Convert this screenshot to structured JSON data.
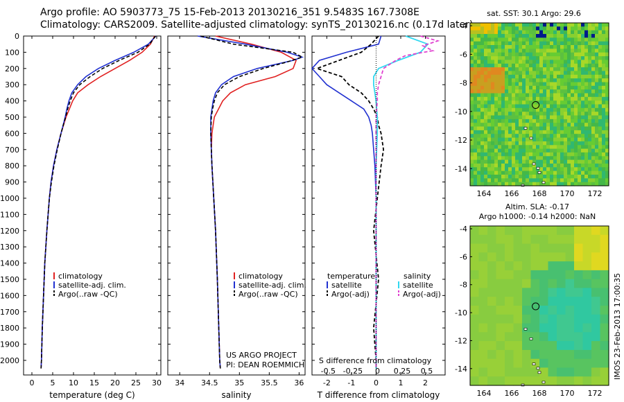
{
  "header": {
    "line1": "Argo profile: AO 5903773_75 15-Feb-2013 20130216_351 9.5483S 167.7308E",
    "line2": "Climatology: CARS2009. Satellite-adjusted climatology: synTS_20130216.nc (0.17d later)"
  },
  "colors": {
    "climatology": "#e02020",
    "satellite": "#2030d0",
    "argo": "#000000",
    "sat_sal": "#30d8f0",
    "argo_sal": "#e040d0"
  },
  "chart_data": [
    {
      "type": "line",
      "id": "temperature",
      "xlabel": "temperature (deg C)",
      "ylabel": "",
      "xlim": [
        -2,
        31
      ],
      "ylim": [
        2090,
        0
      ],
      "y_reversed": true,
      "xticks": [
        0,
        5,
        10,
        15,
        20,
        25,
        30
      ],
      "yticks": [
        0,
        100,
        200,
        300,
        400,
        500,
        600,
        700,
        800,
        900,
        1000,
        1100,
        1200,
        1300,
        1400,
        1500,
        1600,
        1700,
        1800,
        1900,
        2000
      ],
      "legend": [
        "climatology",
        "satellite-adj. clim.",
        "Argo(..raw -QC)"
      ],
      "series": [
        {
          "name": "climatology",
          "depth": [
            0,
            50,
            100,
            150,
            200,
            250,
            300,
            350,
            400,
            450,
            500,
            600,
            700,
            800,
            900,
            1000,
            1200,
            1400,
            1600,
            1800,
            2000,
            2050
          ],
          "values": [
            29.5,
            28.5,
            26.5,
            23.5,
            20,
            16.5,
            13.5,
            11,
            9.8,
            9,
            8.2,
            7,
            6,
            5.2,
            4.6,
            4.2,
            3.6,
            3.1,
            2.8,
            2.5,
            2.3,
            2.2
          ]
        },
        {
          "name": "satellite",
          "depth": [
            0,
            50,
            100,
            150,
            200,
            250,
            300,
            350,
            400,
            450,
            500,
            600,
            700,
            800,
            900,
            1000,
            1200,
            1400,
            1600,
            1800,
            2000,
            2050
          ],
          "values": [
            29.8,
            28,
            24.5,
            20,
            16,
            13,
            11,
            9.6,
            8.9,
            8.4,
            8,
            7,
            6,
            5.2,
            4.6,
            4.2,
            3.6,
            3.1,
            2.8,
            2.5,
            2.3,
            2.2
          ]
        },
        {
          "name": "argo",
          "depth": [
            0,
            50,
            100,
            150,
            200,
            250,
            300,
            350,
            400,
            450,
            500,
            600,
            700,
            800,
            900,
            1000,
            1200,
            1400,
            1600,
            1800,
            2000,
            2050
          ],
          "values": [
            29.7,
            28.3,
            25.5,
            21,
            17,
            14,
            11.5,
            10,
            9.2,
            8.6,
            8.1,
            7,
            6.1,
            5.3,
            4.7,
            4.2,
            3.6,
            3.1,
            2.8,
            2.5,
            2.3,
            2.2
          ]
        }
      ]
    },
    {
      "type": "line",
      "id": "salinity",
      "xlabel": "salinity",
      "ylabel": "",
      "xlim": [
        33.8,
        36.1
      ],
      "ylim": [
        2090,
        0
      ],
      "y_reversed": true,
      "xticks": [
        34,
        34.5,
        35,
        35.5,
        36
      ],
      "legend": [
        "climatology",
        "satellite-adj. clim.",
        "Argo(..raw -QC)"
      ],
      "series": [
        {
          "name": "climatology",
          "depth": [
            0,
            50,
            100,
            150,
            200,
            250,
            300,
            350,
            400,
            450,
            500,
            600,
            700,
            800,
            1000,
            1200,
            1500,
            2000,
            2050
          ],
          "values": [
            34.6,
            35.2,
            35.7,
            35.95,
            35.9,
            35.6,
            35.1,
            34.85,
            34.72,
            34.65,
            34.58,
            34.54,
            34.53,
            34.54,
            34.57,
            34.6,
            34.63,
            34.67,
            34.68
          ]
        },
        {
          "name": "satellite",
          "depth": [
            0,
            50,
            100,
            130,
            150,
            200,
            250,
            300,
            350,
            400,
            450,
            500,
            600,
            700,
            800,
            1000,
            1200,
            1500,
            2000,
            2050
          ],
          "values": [
            34.3,
            35.1,
            35.8,
            36.05,
            35.9,
            35.3,
            34.9,
            34.7,
            34.6,
            34.56,
            34.54,
            34.52,
            34.52,
            34.53,
            34.54,
            34.57,
            34.6,
            34.63,
            34.67,
            34.68
          ]
        },
        {
          "name": "argo",
          "depth": [
            0,
            50,
            100,
            130,
            160,
            200,
            250,
            300,
            350,
            400,
            450,
            500,
            600,
            700,
            800,
            1000,
            1200,
            1500,
            2000,
            2050
          ],
          "values": [
            34.35,
            34.9,
            35.9,
            36.05,
            35.8,
            35.4,
            35,
            34.75,
            34.63,
            34.58,
            34.55,
            34.53,
            34.52,
            34.53,
            34.54,
            34.57,
            34.6,
            34.63,
            34.67,
            34.68
          ]
        }
      ]
    },
    {
      "type": "line",
      "id": "difference",
      "xlabel": "T difference from climatology",
      "xlabel_top": "S difference from climatology",
      "xlim": [
        -2.6,
        2.8
      ],
      "ylim": [
        2090,
        0
      ],
      "y_reversed": true,
      "xticks": [
        -2,
        -1,
        0,
        1,
        2
      ],
      "xticks_top": [
        "-0.5",
        "-0.25",
        "0",
        "0.25",
        "0.5"
      ],
      "xticks_top_values": [
        -2,
        -1,
        0,
        1,
        2
      ],
      "legend_left_title": "temperature",
      "legend_right_title": "salinity",
      "legend": [
        "satellite",
        "Argo(-adj)",
        "satellite",
        "Argo(-adj)"
      ],
      "series": [
        {
          "name": "T satellite",
          "depth": [
            0,
            50,
            100,
            150,
            200,
            250,
            300,
            350,
            400,
            450,
            500,
            550,
            600,
            700,
            800,
            1000,
            1500,
            2000,
            2050
          ],
          "values": [
            0.2,
            0.1,
            -1.2,
            -2.3,
            -2.6,
            -2.3,
            -2,
            -1.5,
            -1,
            -0.5,
            -0.3,
            -0.2,
            -0.15,
            -0.1,
            -0.05,
            0,
            0,
            0,
            0
          ]
        },
        {
          "name": "T argo",
          "depth": [
            0,
            50,
            100,
            150,
            200,
            250,
            300,
            350,
            400,
            450,
            500,
            550,
            600,
            700,
            800,
            1000,
            1200,
            1500,
            1800,
            2000,
            2050
          ],
          "values": [
            0.1,
            -0.2,
            -0.6,
            -1.5,
            -2.4,
            -1.4,
            -1.1,
            -0.6,
            -0.3,
            -0.1,
            0.05,
            0.1,
            0.2,
            0.3,
            0.2,
            0.05,
            -0.1,
            0.1,
            -0.1,
            0,
            0
          ]
        },
        {
          "name": "S satellite",
          "depth": [
            0,
            50,
            100,
            150,
            200,
            250,
            300,
            350,
            400,
            500,
            600,
            800,
            1000,
            1500,
            2000,
            2050
          ],
          "values": [
            1.2,
            2.1,
            1.8,
            0.9,
            0.1,
            -0.1,
            -0.1,
            -0.05,
            0,
            0.05,
            0.05,
            0,
            0,
            0,
            0,
            0
          ]
        },
        {
          "name": "S argo",
          "depth": [
            0,
            30,
            60,
            90,
            120,
            150,
            200,
            250,
            300,
            350,
            400,
            500,
            600,
            800,
            1000,
            2000,
            2050
          ],
          "values": [
            1.8,
            2.5,
            1.9,
            2.3,
            1.2,
            0.8,
            0.3,
            0.2,
            0.1,
            0.05,
            0.05,
            0,
            0,
            0,
            0,
            0,
            0
          ]
        }
      ]
    },
    {
      "type": "heatmap",
      "id": "sst-map",
      "title": "sat. SST: 30.1 Argo: 29.6",
      "xlim": [
        163,
        173
      ],
      "ylim": [
        -15.2,
        -3.8
      ],
      "xticks": [
        164,
        166,
        168,
        170,
        172
      ],
      "yticks": [
        -4,
        -6,
        -8,
        -10,
        -12,
        -14
      ],
      "argo_position": [
        167.73,
        -9.55
      ]
    },
    {
      "type": "heatmap",
      "id": "sla-map",
      "title": "Altim. SLA: -0.17",
      "subtitle": "Argo h1000: -0.14 h2000: NaN",
      "xlim": [
        163,
        173
      ],
      "ylim": [
        -15.2,
        -3.8
      ],
      "xticks": [
        164,
        166,
        168,
        170,
        172
      ],
      "yticks": [
        -4,
        -6,
        -8,
        -10,
        -12,
        -14
      ],
      "argo_position": [
        167.73,
        -9.55
      ]
    }
  ],
  "footer": {
    "project": "US ARGO PROJECT",
    "pi": "PI: DEAN ROEMMICH",
    "stamp": "IMOS 23-Feb-2013 17:00:35"
  }
}
